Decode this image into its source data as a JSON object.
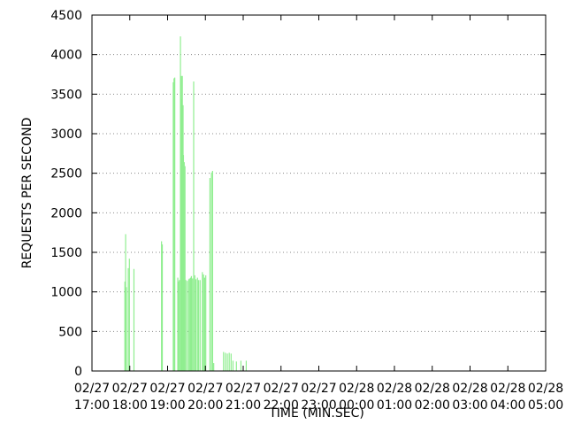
{
  "chart_data": {
    "type": "bar",
    "title": "",
    "xlabel": "TIME (MIN.SEC)",
    "ylabel": "REQUESTS PER SECOND",
    "ylim": [
      0,
      4500
    ],
    "grid": true,
    "bar_color": "#90ee90",
    "y_ticks": [
      0,
      500,
      1000,
      1500,
      2000,
      2500,
      3000,
      3500,
      4000,
      4500
    ],
    "x_tick_labels": [
      [
        "02/27",
        "17:00"
      ],
      [
        "02/27",
        "18:00"
      ],
      [
        "02/27",
        "19:00"
      ],
      [
        "02/27",
        "20:00"
      ],
      [
        "02/27",
        "21:00"
      ],
      [
        "02/27",
        "22:00"
      ],
      [
        "02/27",
        "23:00"
      ],
      [
        "02/28",
        "00:00"
      ],
      [
        "02/28",
        "01:00"
      ],
      [
        "02/28",
        "02:00"
      ],
      [
        "02/28",
        "03:00"
      ],
      [
        "02/28",
        "04:00"
      ],
      [
        "02/28",
        "05:00"
      ]
    ],
    "x_unit": "hours since 02/27 17:00",
    "xlim": [
      0,
      12
    ],
    "points": [
      [
        0.87,
        1130
      ],
      [
        0.89,
        1730
      ],
      [
        0.91,
        1060
      ],
      [
        0.96,
        1300
      ],
      [
        0.99,
        1420
      ],
      [
        1.11,
        1290
      ],
      [
        1.84,
        1640
      ],
      [
        1.86,
        1600
      ],
      [
        2.15,
        3650
      ],
      [
        2.17,
        3700
      ],
      [
        2.19,
        3710
      ],
      [
        2.27,
        1180
      ],
      [
        2.29,
        1130
      ],
      [
        2.31,
        1150
      ],
      [
        2.34,
        4230
      ],
      [
        2.36,
        3730
      ],
      [
        2.38,
        3440
      ],
      [
        2.39,
        3730
      ],
      [
        2.41,
        3360
      ],
      [
        2.42,
        2730
      ],
      [
        2.44,
        2640
      ],
      [
        2.46,
        2590
      ],
      [
        2.48,
        1150
      ],
      [
        2.52,
        1140
      ],
      [
        2.56,
        1160
      ],
      [
        2.58,
        1170
      ],
      [
        2.61,
        1180
      ],
      [
        2.63,
        1200
      ],
      [
        2.66,
        1170
      ],
      [
        2.69,
        3660
      ],
      [
        2.72,
        1210
      ],
      [
        2.75,
        1160
      ],
      [
        2.79,
        1180
      ],
      [
        2.82,
        1150
      ],
      [
        2.86,
        1150
      ],
      [
        2.92,
        1250
      ],
      [
        2.95,
        1220
      ],
      [
        2.98,
        1180
      ],
      [
        3.01,
        1210
      ],
      [
        3.12,
        2440
      ],
      [
        3.16,
        2510
      ],
      [
        3.19,
        2530
      ],
      [
        3.22,
        100
      ],
      [
        3.48,
        240
      ],
      [
        3.53,
        230
      ],
      [
        3.58,
        220
      ],
      [
        3.63,
        230
      ],
      [
        3.68,
        220
      ],
      [
        3.73,
        130
      ],
      [
        3.82,
        120
      ],
      [
        3.94,
        130
      ],
      [
        4.08,
        130
      ]
    ]
  }
}
